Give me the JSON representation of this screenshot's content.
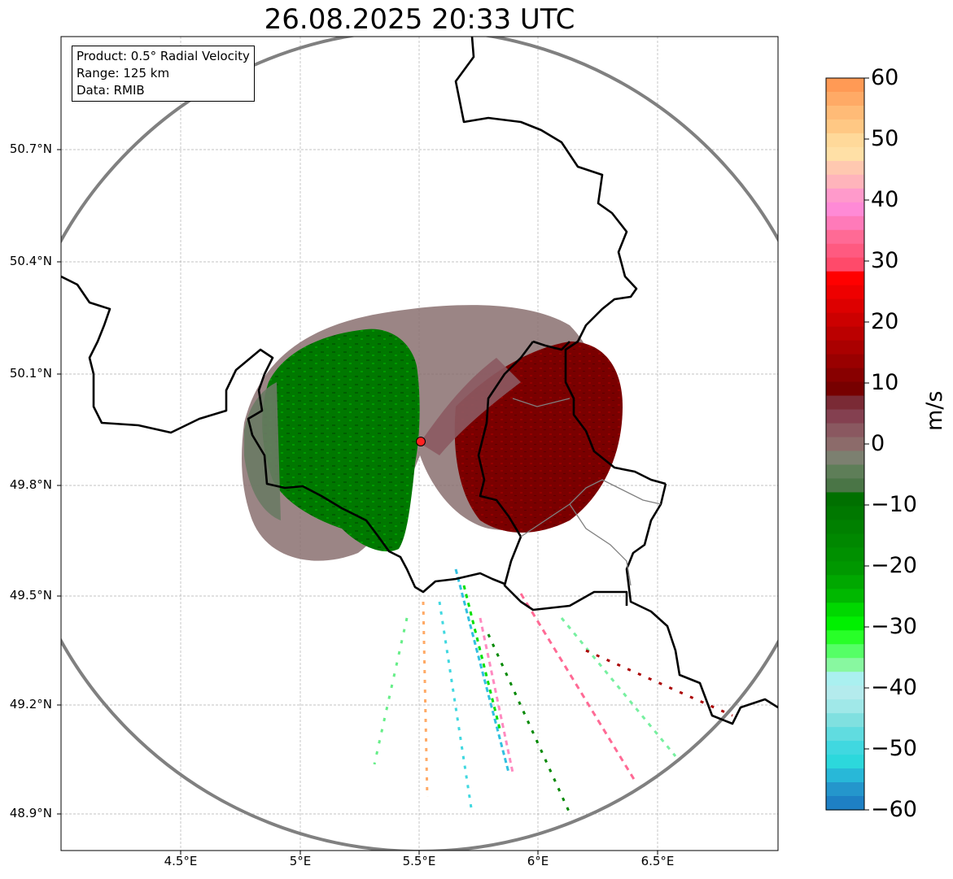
{
  "title": "26.08.2025 20:33 UTC",
  "info": {
    "product": "Product: 0.5° Radial Velocity",
    "range": "Range: 125 km",
    "data": "Data: RMIB"
  },
  "axes": {
    "x_ticks": [
      "4.5°E",
      "5°E",
      "5.5°E",
      "6°E",
      "6.5°E"
    ],
    "y_ticks": [
      "50.7°N",
      "50.4°N",
      "50.1°N",
      "49.8°N",
      "49.5°N",
      "49.2°N",
      "48.9°N"
    ],
    "grid": true
  },
  "colorbar": {
    "unit": "m/s",
    "ticks": [
      "60",
      "50",
      "40",
      "30",
      "20",
      "10",
      "0",
      "−10",
      "−20",
      "−30",
      "−40",
      "−50",
      "−60"
    ],
    "min": -60,
    "max": 60,
    "colors_top_to_bottom": [
      "#ff9a55",
      "#ffaa66",
      "#ffbb77",
      "#ffc884",
      "#ffd99a",
      "#ffe0a6",
      "#ffc8b0",
      "#ffb4bb",
      "#ff9acb",
      "#ff8ad6",
      "#ff7ab9",
      "#ff6a95",
      "#ff5a80",
      "#ff4a6a",
      "#ff0000",
      "#ee0000",
      "#dd0000",
      "#cc0000",
      "#bb0000",
      "#aa0000",
      "#990000",
      "#880000",
      "#770000",
      "#7a2a35",
      "#844050",
      "#8a5860",
      "#8c6b6a",
      "#7c8070",
      "#5e7e58",
      "#4a7546",
      "#007000",
      "#007800",
      "#008000",
      "#008800",
      "#009000",
      "#009800",
      "#00a800",
      "#00b800",
      "#00d800",
      "#00f000",
      "#28ff28",
      "#55ff66",
      "#88f8a0",
      "#aaf0f0",
      "#b4ebed",
      "#a0e8e8",
      "#80e0e0",
      "#60dce0",
      "#40d8e0",
      "#2cd8dc",
      "#28b8d8",
      "#2496cc",
      "#1e80c4"
    ]
  },
  "map": {
    "radar_site_color": "#ff2222",
    "velocity_positive_color": "#7a0000",
    "velocity_negative_color": "#007a00",
    "near_zero_color": "#8a7070",
    "range_ring_color": "#808080"
  }
}
